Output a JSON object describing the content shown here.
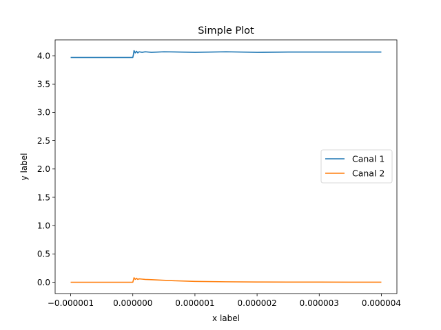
{
  "chart_data": {
    "type": "line",
    "title": "Simple Plot",
    "xlabel": "x label",
    "ylabel": "y label",
    "xlim": [
      -1.25e-06,
      4.25e-06
    ],
    "ylim": [
      -0.2,
      4.28
    ],
    "xticks": [
      -1e-06,
      0,
      1e-06,
      2e-06,
      3e-06,
      4e-06
    ],
    "xtick_labels": [
      "−0.000001",
      "0.000000",
      "0.000001",
      "0.000002",
      "0.000003",
      "0.000004"
    ],
    "yticks": [
      0,
      0.5,
      1,
      1.5,
      2,
      2.5,
      3,
      3.5,
      4
    ],
    "ytick_labels": [
      "0.0",
      "0.5",
      "1.0",
      "1.5",
      "2.0",
      "2.5",
      "3.0",
      "3.5",
      "4.0"
    ],
    "grid": false,
    "legend_position": "center-right",
    "series": [
      {
        "name": "Canal 1",
        "color": "#1f77b4",
        "x": [
          -1e-06,
          -5e-07,
          0,
          1e-08,
          2e-08,
          4e-08,
          6e-08,
          8e-08,
          1e-07,
          1.5e-07,
          2e-07,
          3e-07,
          5e-07,
          1e-06,
          1.5e-06,
          2e-06,
          2.5e-06,
          3e-06,
          3.5e-06,
          4e-06
        ],
        "y": [
          3.97,
          3.97,
          3.97,
          4.02,
          4.09,
          4.05,
          4.08,
          4.05,
          4.07,
          4.06,
          4.07,
          4.06,
          4.07,
          4.06,
          4.07,
          4.06,
          4.065,
          4.065,
          4.065,
          4.065
        ]
      },
      {
        "name": "Canal 2",
        "color": "#ff7f0e",
        "x": [
          -1e-06,
          -5e-07,
          0,
          1e-08,
          2e-08,
          4e-08,
          6e-08,
          8e-08,
          1e-07,
          1.5e-07,
          2e-07,
          3e-07,
          5e-07,
          7e-07,
          1e-06,
          1.5e-06,
          2e-06,
          2.5e-06,
          3e-06,
          3.5e-06,
          4e-06
        ],
        "y": [
          0.0,
          0.0,
          0.0,
          0.04,
          0.08,
          0.05,
          0.07,
          0.05,
          0.06,
          0.055,
          0.05,
          0.045,
          0.035,
          0.025,
          0.015,
          0.008,
          0.004,
          0.003,
          0.002,
          0.001,
          0.001
        ]
      }
    ]
  }
}
